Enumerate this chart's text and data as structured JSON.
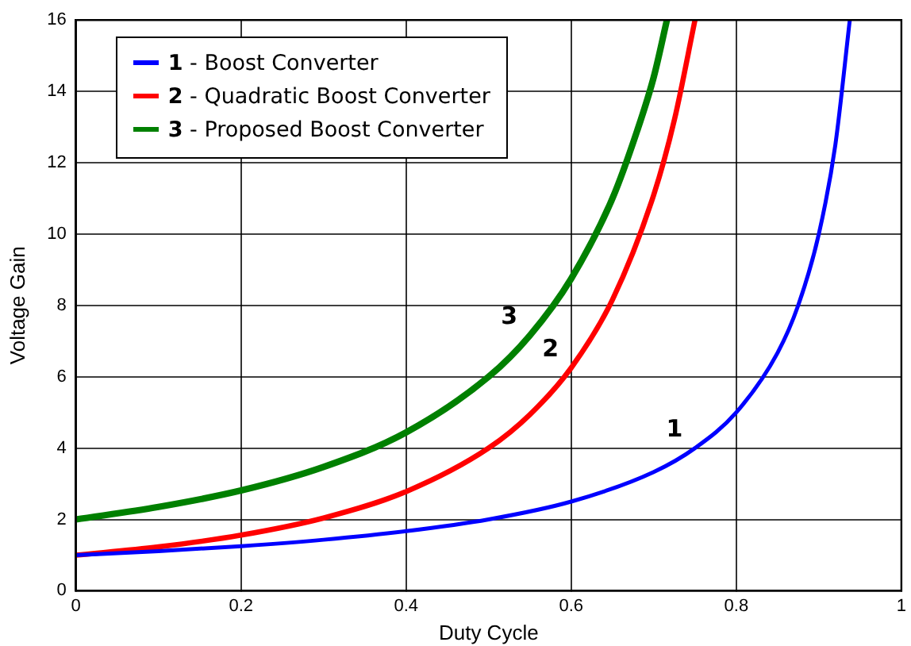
{
  "chart_data": {
    "type": "line",
    "xlabel": "Duty Cycle",
    "ylabel": "Voltage Gain",
    "xlim": [
      0,
      1
    ],
    "xticks": [
      0,
      0.2,
      0.4,
      0.6,
      0.8,
      1
    ],
    "ylim": [
      0,
      16
    ],
    "yticks": [
      0,
      2,
      4,
      6,
      8,
      10,
      12,
      14,
      16
    ],
    "grid": true,
    "legend": "top left",
    "marker": "none",
    "line_style": "solid",
    "series": [
      {
        "name": "1 - Boost Converter",
        "color": "#0000ff",
        "x": [
          0,
          0.1,
          0.2,
          0.3,
          0.4,
          0.5,
          0.6,
          0.7,
          0.75,
          0.8,
          0.85,
          0.875,
          0.9,
          0.92,
          0.9375
        ],
        "values": [
          1,
          1.11,
          1.25,
          1.43,
          1.67,
          2,
          2.5,
          3.33,
          4,
          5,
          6.67,
          8,
          10,
          12.5,
          16
        ]
      },
      {
        "name": "2 - Quadratic Boost Converter",
        "color": "#ff0000",
        "x": [
          0,
          0.1,
          0.2,
          0.3,
          0.4,
          0.5,
          0.55,
          0.6,
          0.65,
          0.7,
          0.725,
          0.75
        ],
        "values": [
          1,
          1.23,
          1.56,
          2.04,
          2.78,
          4,
          4.94,
          6.25,
          8.16,
          11.1,
          13.2,
          16
        ]
      },
      {
        "name": "3 - Proposed Boost Converter",
        "color": "#008000",
        "x": [
          0,
          0.1,
          0.2,
          0.3,
          0.4,
          0.5,
          0.55,
          0.6,
          0.65,
          0.68,
          0.7,
          0.716
        ],
        "values": [
          2,
          2.35,
          2.81,
          3.47,
          4.44,
          6,
          7.16,
          8.75,
          11,
          12.9,
          14.4,
          16
        ]
      }
    ],
    "annotations": [
      {
        "text": "1",
        "x": 0.75,
        "y": 4
      },
      {
        "text": "2",
        "x": 0.6,
        "y": 6.25
      },
      {
        "text": "3",
        "x": 0.55,
        "y": 7.16
      }
    ]
  }
}
